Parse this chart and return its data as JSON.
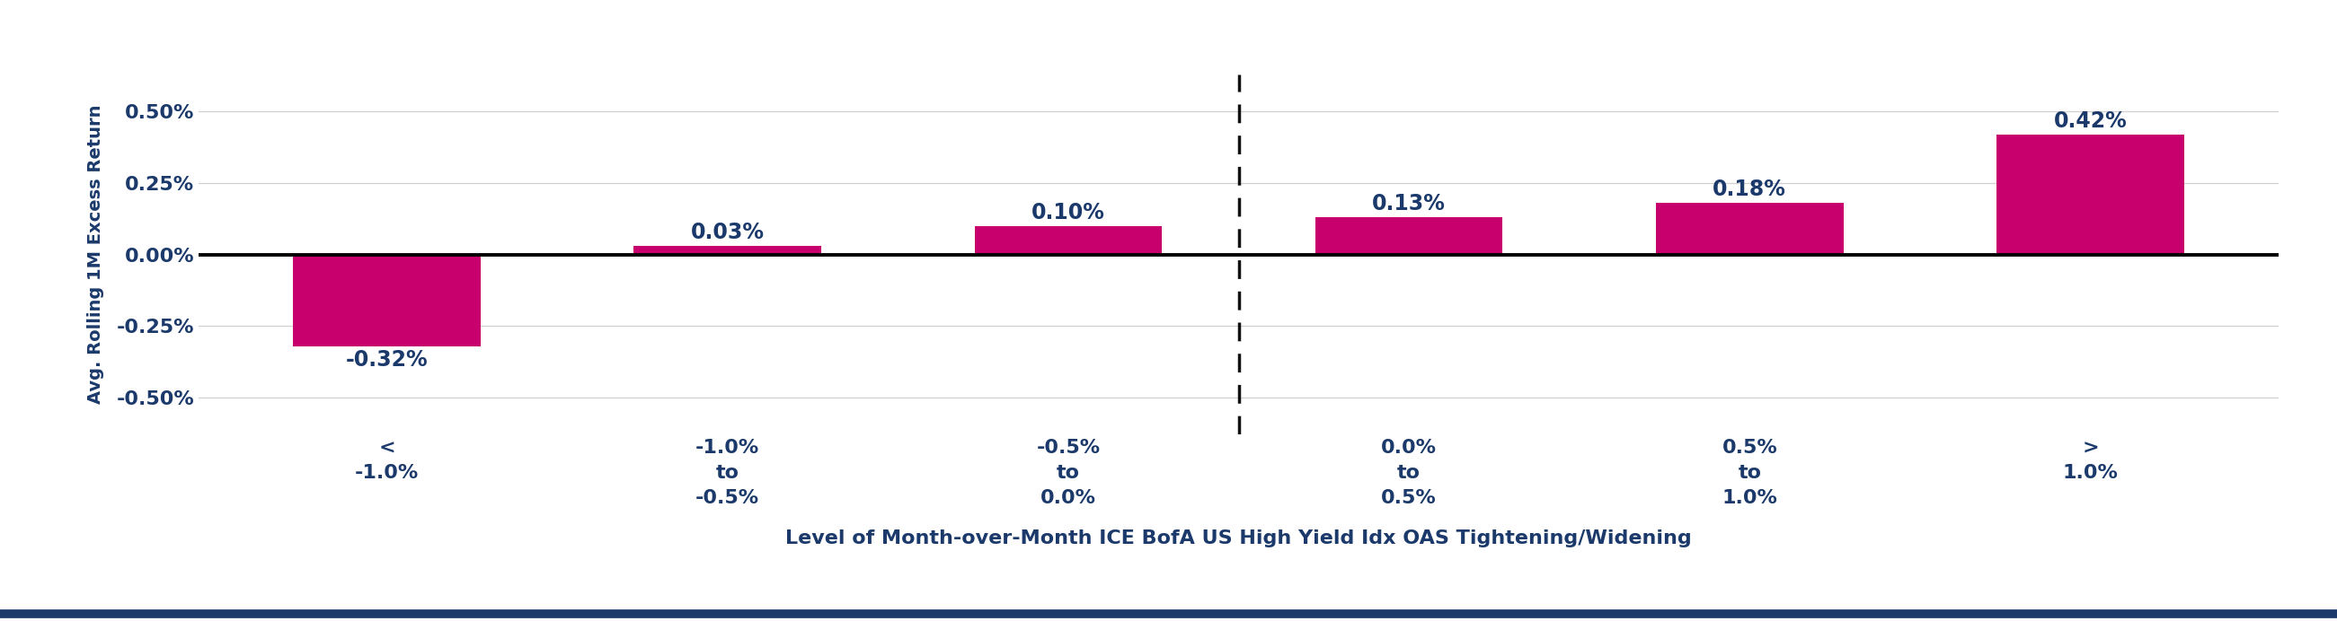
{
  "categories": [
    "<\n-1.0%",
    "-1.0%\nto\n-0.5%",
    "-0.5%\nto\n0.0%",
    "0.0%\nto\n0.5%",
    "0.5%\nto\n1.0%",
    ">\n1.0%"
  ],
  "values": [
    -0.0032,
    0.0003,
    0.001,
    0.0013,
    0.0018,
    0.0042
  ],
  "bar_color": "#C8006E",
  "value_labels": [
    "-0.32%",
    "0.03%",
    "0.10%",
    "0.13%",
    "0.18%",
    "0.42%"
  ],
  "ylabel": "Avg. Rolling 1M Excess Return",
  "xlabel": "Level of Month-over-Month ICE BofA US High Yield Idx OAS Tightening/Widening",
  "ylim": [
    -0.0063,
    0.0063
  ],
  "yticks": [
    -0.005,
    -0.0025,
    0.0,
    0.0025,
    0.005
  ],
  "ytick_labels": [
    "-0.50%",
    "-0.25%",
    "0.00%",
    "0.25%",
    "0.50%"
  ],
  "dashed_line_x": 2.5,
  "background_color": "#FFFFFF",
  "grid_color": "#D0D0D0",
  "text_color": "#1B3A6B",
  "bar_color_neg": "#C8006E",
  "bar_width": 0.55,
  "bottom_line_color": "#1B3A6B",
  "xlabel_fontsize": 16,
  "ylabel_fontsize": 14,
  "value_label_fontsize": 17,
  "tick_label_fontsize": 16,
  "xtick_label_fontsize": 16
}
